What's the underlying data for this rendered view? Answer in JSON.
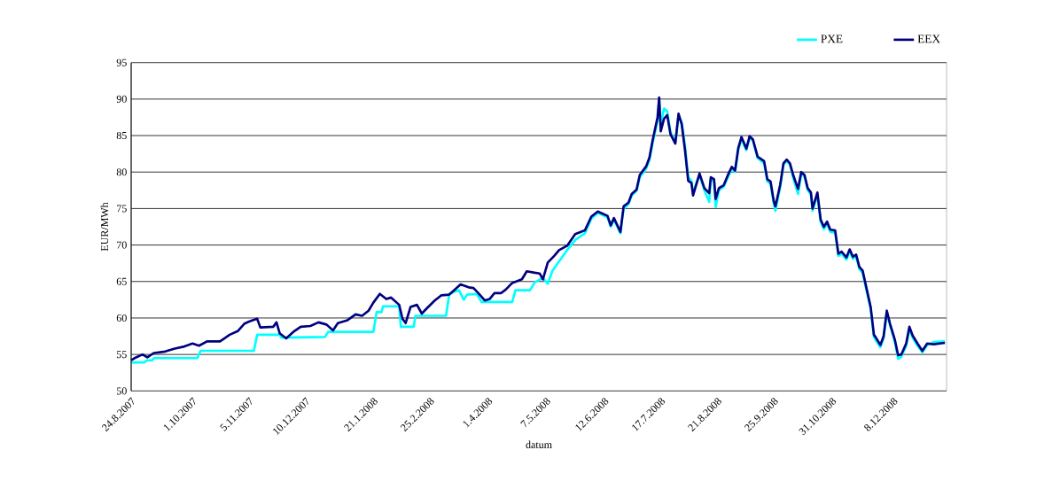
{
  "chart_data": {
    "type": "line",
    "xlabel": "datum",
    "ylabel": "EUR/MWh",
    "xlim": [
      "2007-08-24",
      "2009-01-10"
    ],
    "ylim": [
      50,
      95
    ],
    "yticks": [
      50,
      55,
      60,
      65,
      70,
      75,
      80,
      85,
      90,
      95
    ],
    "xticks": [
      {
        "value": "2007-08-24",
        "label": "24.8.2007"
      },
      {
        "value": "2007-10-01",
        "label": "1.10.2007"
      },
      {
        "value": "2007-11-05",
        "label": "5.11.2007"
      },
      {
        "value": "2007-12-10",
        "label": "10.12.2007"
      },
      {
        "value": "2008-01-21",
        "label": "21.1.2008"
      },
      {
        "value": "2008-02-25",
        "label": "25.2.2008"
      },
      {
        "value": "2008-04-01",
        "label": "1.4.2008"
      },
      {
        "value": "2008-05-07",
        "label": "7.5.2008"
      },
      {
        "value": "2008-06-12",
        "label": "12.6.2008"
      },
      {
        "value": "2008-07-17",
        "label": "17.7.2008"
      },
      {
        "value": "2008-08-21",
        "label": "21.8.2008"
      },
      {
        "value": "2008-09-25",
        "label": "25.9.2008"
      },
      {
        "value": "2008-10-31",
        "label": "31.10.2008"
      },
      {
        "value": "2008-12-08",
        "label": "8.12.2008"
      }
    ],
    "grid": "y",
    "legend": "top right",
    "marker": "none",
    "line_style": "solid",
    "series": [
      {
        "name": "PXE",
        "color": "#00ffff",
        "x": [
          "2007-08-24",
          "2007-09-01",
          "2007-09-03",
          "2007-09-06",
          "2007-09-07",
          "2007-10-04",
          "2007-10-06",
          "2007-11-08",
          "2007-11-10",
          "2007-11-24",
          "2007-11-25",
          "2007-12-22",
          "2007-12-24",
          "2008-01-21",
          "2008-01-23",
          "2008-01-26",
          "2008-01-27",
          "2008-02-06",
          "2008-02-07",
          "2008-02-15",
          "2008-02-16",
          "2008-03-06",
          "2008-03-08",
          "2008-03-11",
          "2008-03-14",
          "2008-03-17",
          "2008-03-19",
          "2008-03-25",
          "2008-03-28",
          "2008-04-16",
          "2008-04-18",
          "2008-04-27",
          "2008-04-30",
          "2008-05-05",
          "2008-05-08",
          "2008-05-11",
          "2008-05-20",
          "2008-05-25",
          "2008-05-31",
          "2008-06-04",
          "2008-06-08",
          "2008-06-14",
          "2008-06-16",
          "2008-06-18",
          "2008-06-22",
          "2008-06-24",
          "2008-06-27",
          "2008-06-29",
          "2008-07-02",
          "2008-07-04",
          "2008-07-08",
          "2008-07-10",
          "2008-07-12",
          "2008-07-15",
          "2008-07-16",
          "2008-07-17",
          "2008-07-19",
          "2008-07-21",
          "2008-07-23",
          "2008-07-26",
          "2008-07-28",
          "2008-07-30",
          "2008-08-01",
          "2008-08-03",
          "2008-08-05",
          "2008-08-06",
          "2008-08-10",
          "2008-08-13",
          "2008-08-16",
          "2008-08-17",
          "2008-08-19",
          "2008-08-20",
          "2008-08-22",
          "2008-08-25",
          "2008-08-28",
          "2008-08-30",
          "2008-09-01",
          "2008-09-03",
          "2008-09-05",
          "2008-09-08",
          "2008-09-10",
          "2008-09-12",
          "2008-09-15",
          "2008-09-19",
          "2008-09-21",
          "2008-09-23",
          "2008-09-25",
          "2008-09-26",
          "2008-09-29",
          "2008-10-01",
          "2008-10-03",
          "2008-10-05",
          "2008-10-07",
          "2008-10-10",
          "2008-10-12",
          "2008-10-14",
          "2008-10-16",
          "2008-10-18",
          "2008-10-19",
          "2008-10-22",
          "2008-10-24",
          "2008-10-26",
          "2008-10-28",
          "2008-10-30",
          "2008-11-02",
          "2008-11-04",
          "2008-11-06",
          "2008-11-09",
          "2008-11-11",
          "2008-11-13",
          "2008-11-15",
          "2008-11-17",
          "2008-11-19",
          "2008-11-21",
          "2008-11-24",
          "2008-11-26",
          "2008-11-27",
          "2008-11-30",
          "2008-12-02",
          "2008-12-04",
          "2008-12-06",
          "2008-12-09",
          "2008-12-11",
          "2008-12-13",
          "2008-12-16",
          "2008-12-18",
          "2008-12-20",
          "2008-12-23",
          "2008-12-26",
          "2008-12-29",
          "2009-01-02",
          "2009-01-09"
        ],
        "values": [
          53.9,
          53.9,
          54.2,
          54.2,
          54.5,
          54.5,
          55.5,
          55.5,
          57.7,
          57.7,
          57.3,
          57.4,
          58.1,
          58.1,
          60.8,
          60.8,
          61.6,
          61.6,
          58.8,
          58.8,
          60.3,
          60.3,
          63.3,
          63.6,
          63.8,
          62.5,
          63.2,
          63.3,
          62.2,
          62.2,
          63.8,
          63.8,
          64.9,
          65.5,
          64.7,
          66.5,
          69.3,
          70.7,
          71.6,
          73.6,
          74.4,
          73.8,
          72.5,
          73.5,
          71.6,
          75.0,
          75.6,
          76.8,
          77.4,
          79.3,
          80.5,
          81.7,
          84.0,
          87.0,
          89.8,
          86.5,
          88.7,
          88.3,
          85.5,
          84.0,
          87.7,
          86.8,
          83.6,
          79.3,
          78.8,
          77.2,
          79.6,
          77.5,
          75.9,
          79.0,
          78.7,
          75.2,
          77.5,
          78.0,
          79.5,
          80.5,
          80.0,
          83.0,
          84.5,
          83.0,
          84.6,
          84.4,
          81.9,
          81.2,
          78.7,
          78.4,
          75.6,
          74.7,
          78.0,
          81.0,
          81.5,
          81.0,
          79.2,
          77.0,
          79.7,
          79.4,
          77.5,
          76.9,
          74.7,
          76.9,
          73.2,
          72.2,
          72.9,
          71.8,
          71.7,
          68.5,
          68.8,
          68.0,
          69.1,
          68.1,
          68.4,
          66.7,
          66.2,
          64.2,
          61.2,
          57.4,
          57.0,
          56.0,
          57.2,
          60.7,
          59.0,
          56.7,
          54.4,
          54.7,
          56.2,
          58.5,
          57.3,
          56.2,
          55.3,
          56.3,
          56.7,
          56.8
        ]
      },
      {
        "name": "EEX",
        "color": "#000080",
        "x": [
          "2007-08-24",
          "2007-08-27",
          "2007-08-31",
          "2007-09-03",
          "2007-09-07",
          "2007-09-14",
          "2007-09-20",
          "2007-09-26",
          "2007-10-01",
          "2007-10-05",
          "2007-10-10",
          "2007-10-18",
          "2007-10-24",
          "2007-10-29",
          "2007-11-02",
          "2007-11-05",
          "2007-11-10",
          "2007-11-12",
          "2007-11-20",
          "2007-11-22",
          "2007-11-24",
          "2007-11-28",
          "2007-12-03",
          "2007-12-07",
          "2007-12-13",
          "2007-12-18",
          "2007-12-23",
          "2007-12-27",
          "2007-12-30",
          "2008-01-05",
          "2008-01-10",
          "2008-01-14",
          "2008-01-18",
          "2008-01-21",
          "2008-01-25",
          "2008-01-29",
          "2008-02-01",
          "2008-02-06",
          "2008-02-08",
          "2008-02-10",
          "2008-02-13",
          "2008-02-17",
          "2008-02-20",
          "2008-02-23",
          "2008-02-28",
          "2008-03-03",
          "2008-03-08",
          "2008-03-12",
          "2008-03-15",
          "2008-03-20",
          "2008-03-23",
          "2008-03-26",
          "2008-03-30",
          "2008-04-02",
          "2008-04-05",
          "2008-04-09",
          "2008-04-12",
          "2008-04-16",
          "2008-04-22",
          "2008-04-25",
          "2008-04-30",
          "2008-05-03",
          "2008-05-05",
          "2008-05-08",
          "2008-05-12",
          "2008-05-15",
          "2008-05-20",
          "2008-05-25",
          "2008-05-31",
          "2008-06-04",
          "2008-06-08",
          "2008-06-14",
          "2008-06-16",
          "2008-06-18",
          "2008-06-22",
          "2008-06-24",
          "2008-06-27",
          "2008-06-29",
          "2008-07-02",
          "2008-07-04",
          "2008-07-08",
          "2008-07-10",
          "2008-07-12",
          "2008-07-15",
          "2008-07-16",
          "2008-07-17",
          "2008-07-19",
          "2008-07-21",
          "2008-07-23",
          "2008-07-26",
          "2008-07-28",
          "2008-07-30",
          "2008-08-01",
          "2008-08-03",
          "2008-08-05",
          "2008-08-06",
          "2008-08-10",
          "2008-08-13",
          "2008-08-16",
          "2008-08-17",
          "2008-08-19",
          "2008-08-20",
          "2008-08-22",
          "2008-08-25",
          "2008-08-28",
          "2008-08-30",
          "2008-09-01",
          "2008-09-03",
          "2008-09-05",
          "2008-09-08",
          "2008-09-10",
          "2008-09-12",
          "2008-09-15",
          "2008-09-19",
          "2008-09-21",
          "2008-09-23",
          "2008-09-25",
          "2008-09-26",
          "2008-09-29",
          "2008-10-01",
          "2008-10-03",
          "2008-10-05",
          "2008-10-07",
          "2008-10-10",
          "2008-10-12",
          "2008-10-14",
          "2008-10-16",
          "2008-10-18",
          "2008-10-19",
          "2008-10-22",
          "2008-10-24",
          "2008-10-26",
          "2008-10-28",
          "2008-10-30",
          "2008-11-02",
          "2008-11-04",
          "2008-11-06",
          "2008-11-09",
          "2008-11-11",
          "2008-11-13",
          "2008-11-15",
          "2008-11-17",
          "2008-11-19",
          "2008-11-21",
          "2008-11-24",
          "2008-11-26",
          "2008-11-27",
          "2008-11-30",
          "2008-12-02",
          "2008-12-04",
          "2008-12-06",
          "2008-12-09",
          "2008-12-11",
          "2008-12-13",
          "2008-12-16",
          "2008-12-18",
          "2008-12-20",
          "2008-12-23",
          "2008-12-26",
          "2008-12-29",
          "2009-01-02",
          "2009-01-09"
        ],
        "values": [
          54.2,
          54.6,
          55.0,
          54.6,
          55.2,
          55.4,
          55.8,
          56.1,
          56.5,
          56.2,
          56.8,
          56.8,
          57.7,
          58.2,
          59.2,
          59.5,
          59.9,
          58.7,
          58.8,
          59.4,
          57.9,
          57.2,
          58.2,
          58.8,
          58.9,
          59.4,
          59.1,
          58.3,
          59.3,
          59.7,
          60.5,
          60.3,
          61.0,
          62.1,
          63.3,
          62.6,
          62.8,
          61.8,
          59.9,
          59.3,
          61.5,
          61.8,
          60.6,
          61.3,
          62.4,
          63.1,
          63.2,
          64.0,
          64.6,
          64.2,
          64.1,
          63.4,
          62.4,
          62.6,
          63.4,
          63.4,
          63.9,
          64.8,
          65.3,
          66.4,
          66.2,
          66.1,
          65.3,
          67.6,
          68.5,
          69.3,
          69.9,
          71.5,
          72.0,
          73.9,
          74.6,
          74.0,
          72.7,
          73.7,
          71.8,
          75.3,
          75.8,
          77.0,
          77.6,
          79.6,
          80.8,
          82.0,
          84.4,
          87.5,
          90.2,
          85.6,
          87.3,
          87.8,
          85.2,
          83.9,
          88.0,
          86.5,
          83.0,
          78.8,
          78.5,
          76.8,
          79.8,
          77.8,
          77.1,
          79.3,
          79.0,
          76.3,
          77.8,
          78.2,
          79.8,
          80.7,
          80.2,
          83.3,
          84.8,
          83.2,
          84.9,
          84.5,
          82.1,
          81.5,
          79.0,
          78.7,
          76.0,
          75.3,
          78.3,
          81.2,
          81.7,
          81.2,
          79.6,
          77.7,
          80.0,
          79.6,
          77.8,
          77.2,
          75.0,
          77.2,
          73.5,
          72.5,
          73.2,
          72.1,
          72.0,
          68.8,
          69.1,
          68.3,
          69.4,
          68.4,
          68.7,
          67.0,
          66.5,
          64.5,
          61.5,
          57.7,
          57.4,
          56.3,
          57.5,
          61.0,
          59.2,
          57.0,
          54.9,
          55.0,
          56.5,
          58.8,
          57.6,
          56.5,
          55.5,
          56.5,
          56.4,
          56.6
        ]
      }
    ]
  }
}
